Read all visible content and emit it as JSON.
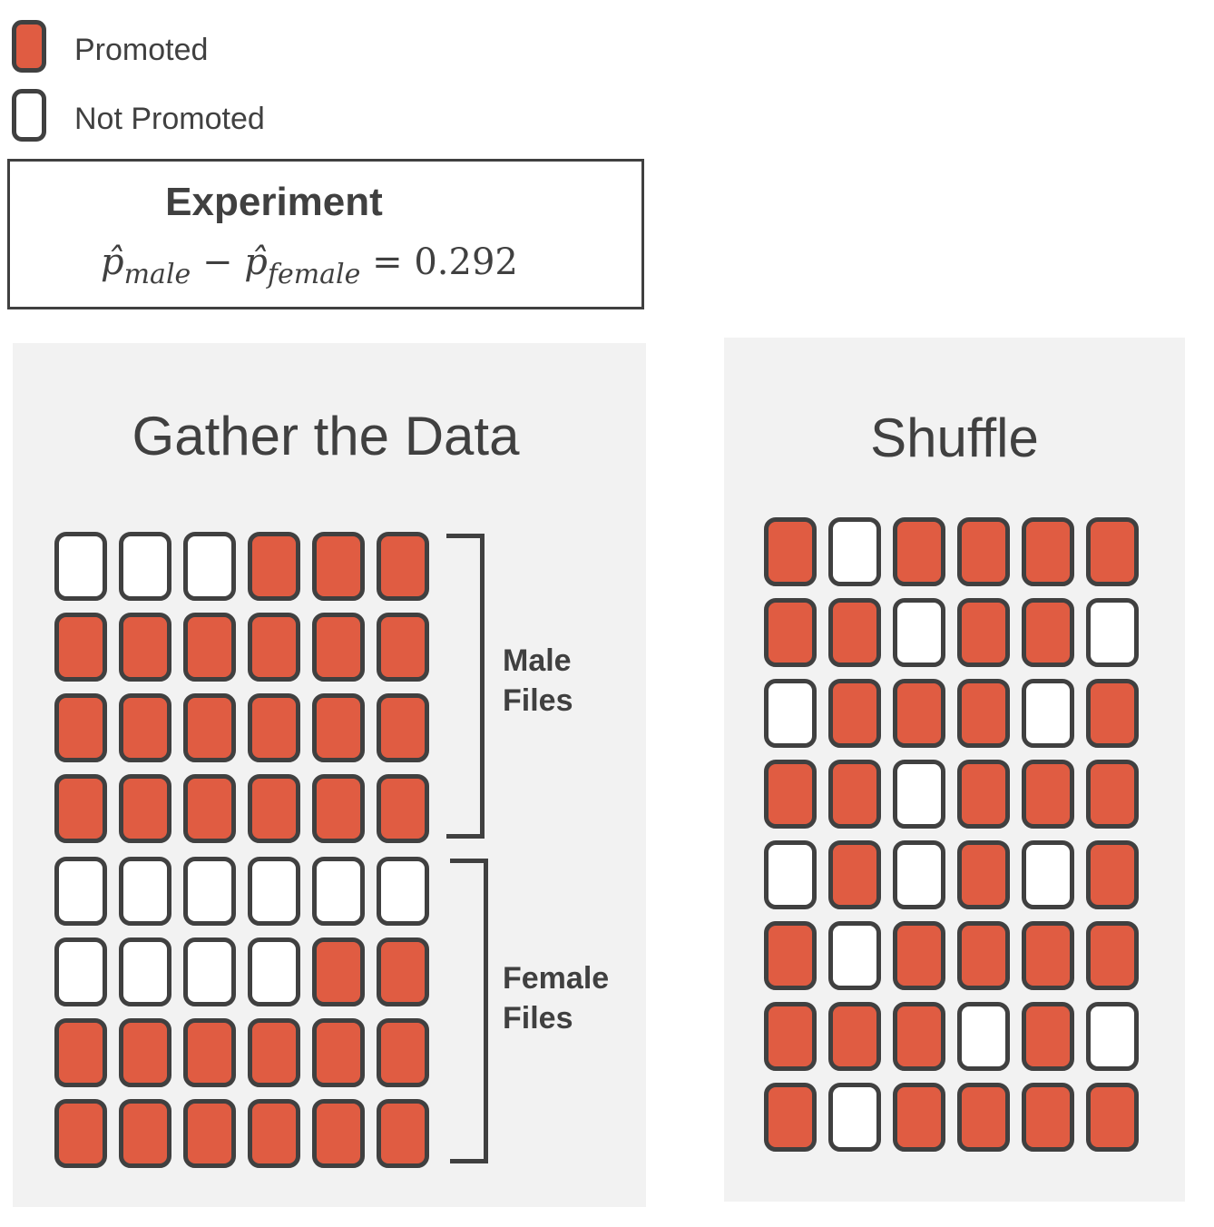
{
  "colors": {
    "promoted": "#e05c42",
    "not_promoted": "#ffffff",
    "outline": "#404040",
    "panel": "#f2f2f2"
  },
  "legend": {
    "promoted_label": "Promoted",
    "not_promoted_label": "Not Promoted"
  },
  "experiment": {
    "title": "Experiment",
    "p_male_sub": "male",
    "p_female_sub": "female",
    "equals": "=",
    "value": "0.292"
  },
  "gather": {
    "title": "Gather the Data",
    "male_label_line1": "Male",
    "male_label_line2": "Files",
    "female_label_line1": "Female",
    "female_label_line2": "Files",
    "male_rows": [
      [
        0,
        0,
        0,
        1,
        1,
        1
      ],
      [
        1,
        1,
        1,
        1,
        1,
        1
      ],
      [
        1,
        1,
        1,
        1,
        1,
        1
      ],
      [
        1,
        1,
        1,
        1,
        1,
        1
      ]
    ],
    "female_rows": [
      [
        0,
        0,
        0,
        0,
        0,
        0
      ],
      [
        0,
        0,
        0,
        0,
        1,
        1
      ],
      [
        1,
        1,
        1,
        1,
        1,
        1
      ],
      [
        1,
        1,
        1,
        1,
        1,
        1
      ]
    ]
  },
  "shuffle": {
    "title": "Shuffle",
    "rows": [
      [
        1,
        0,
        1,
        1,
        1,
        1
      ],
      [
        1,
        1,
        0,
        1,
        1,
        0
      ],
      [
        0,
        1,
        1,
        1,
        0,
        1
      ],
      [
        1,
        1,
        0,
        1,
        1,
        1
      ],
      [
        0,
        1,
        0,
        1,
        0,
        1
      ],
      [
        1,
        0,
        1,
        1,
        1,
        1
      ],
      [
        1,
        1,
        1,
        0,
        1,
        0
      ],
      [
        1,
        0,
        1,
        1,
        1,
        1
      ]
    ]
  }
}
